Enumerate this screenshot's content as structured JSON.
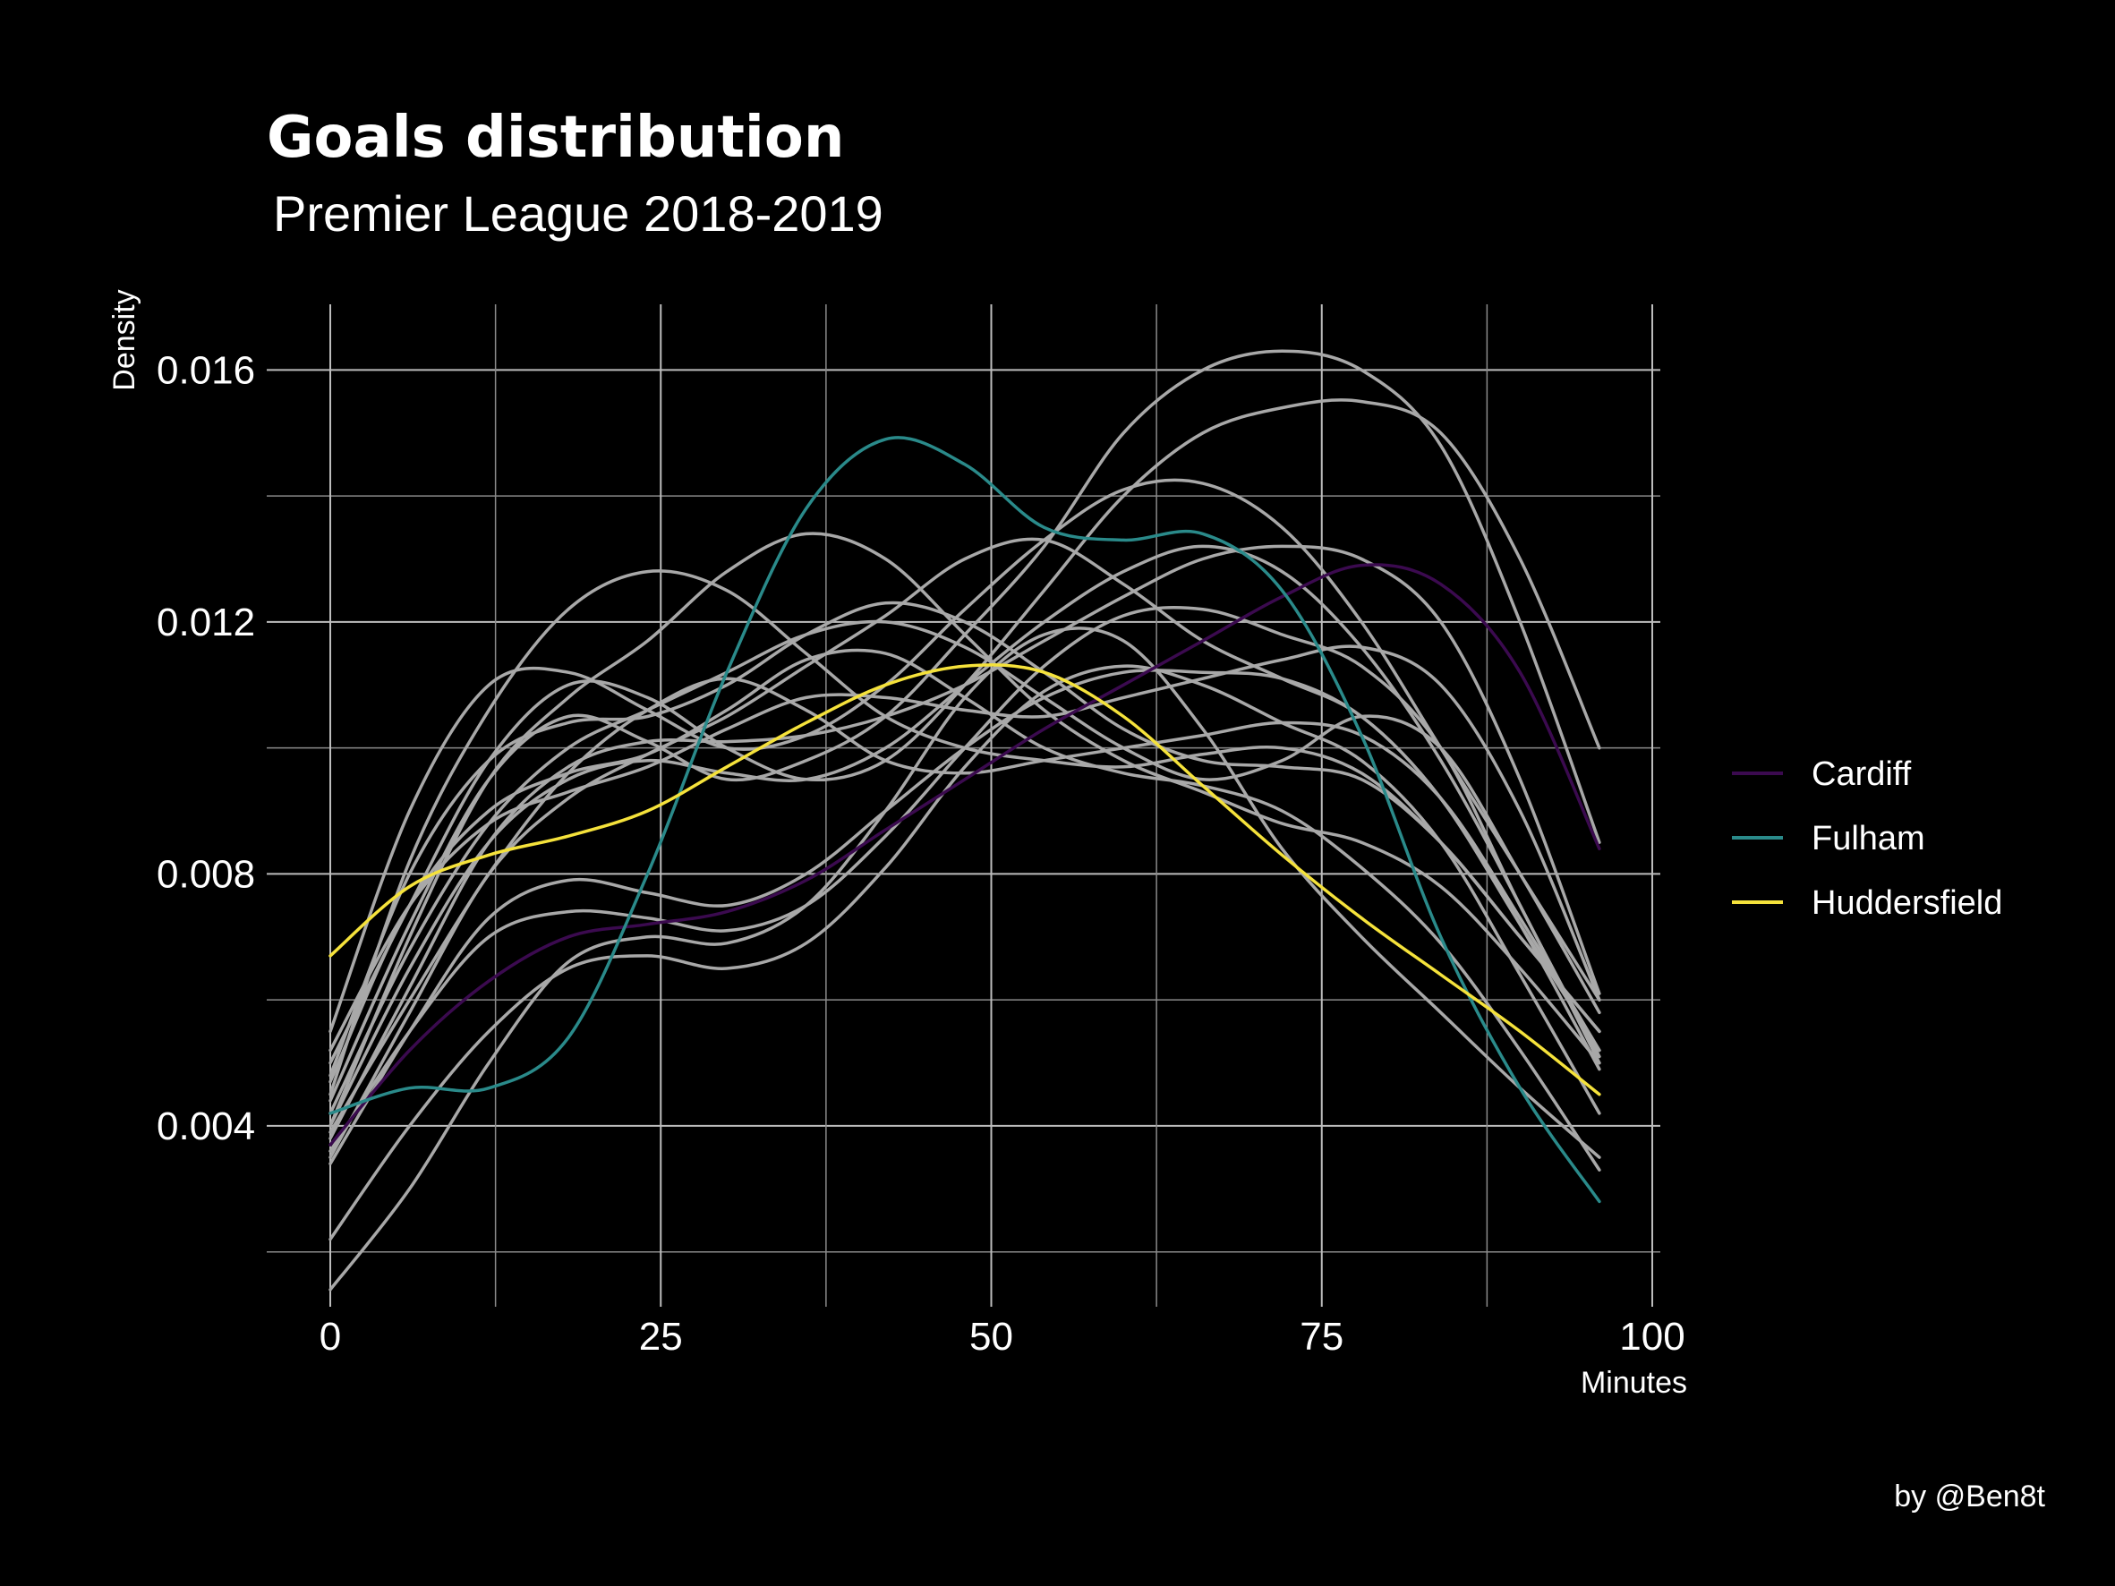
{
  "chart_data": {
    "type": "line",
    "title": "Goals distribution",
    "subtitle": "Premier League 2018-2019",
    "xlabel": "Minutes",
    "ylabel": "Density",
    "xlim": [
      0,
      100
    ],
    "ylim": [
      0.0012,
      0.017
    ],
    "x_ticks": [
      0,
      25,
      50,
      75,
      100
    ],
    "y_ticks": [
      0.004,
      0.008,
      0.012,
      0.016
    ],
    "x_tick_labels": [
      "0",
      "25",
      "50",
      "75",
      "100"
    ],
    "y_tick_labels": [
      "0.004",
      "0.008",
      "0.012",
      "0.016"
    ],
    "x_minor": [
      12.5,
      37.5,
      62.5,
      87.5
    ],
    "y_minor": [
      0.002,
      0.006,
      0.01,
      0.014
    ],
    "grid": true,
    "legend_position": "right",
    "caption": "by @Ben8t",
    "x": [
      0,
      6,
      12,
      18,
      24,
      30,
      36,
      42,
      48,
      54,
      60,
      66,
      72,
      78,
      84,
      90,
      96
    ],
    "series": [
      {
        "name": "Cardiff",
        "color": "#3b0a4f",
        "highlight": true,
        "values": [
          0.0037,
          0.0052,
          0.0063,
          0.007,
          0.0072,
          0.0074,
          0.0079,
          0.0087,
          0.0095,
          0.0103,
          0.011,
          0.0117,
          0.0124,
          0.0129,
          0.0126,
          0.0112,
          0.0084
        ]
      },
      {
        "name": "Fulham",
        "color": "#2a8a8a",
        "highlight": true,
        "values": [
          0.0042,
          0.0046,
          0.0046,
          0.0054,
          0.008,
          0.0112,
          0.0138,
          0.0149,
          0.0145,
          0.0135,
          0.0133,
          0.0134,
          0.0125,
          0.0102,
          0.007,
          0.0046,
          0.0028
        ]
      },
      {
        "name": "Huddersfield",
        "color": "#f5e23b",
        "highlight": true,
        "values": [
          0.0067,
          0.0078,
          0.0083,
          0.0086,
          0.009,
          0.0097,
          0.0104,
          0.011,
          0.0113,
          0.0112,
          0.0105,
          0.0094,
          0.0083,
          0.0073,
          0.0064,
          0.0055,
          0.0045
        ]
      },
      {
        "color": "#a8a8a8",
        "highlight": false,
        "values": [
          0.0044,
          0.0072,
          0.0095,
          0.0105,
          0.0101,
          0.0095,
          0.0098,
          0.0105,
          0.0118,
          0.0132,
          0.015,
          0.016,
          0.0163,
          0.016,
          0.0148,
          0.012,
          0.0085
        ]
      },
      {
        "color": "#a8a8a8",
        "highlight": false,
        "values": [
          0.005,
          0.0075,
          0.0098,
          0.011,
          0.0108,
          0.01,
          0.0095,
          0.0098,
          0.011,
          0.0125,
          0.014,
          0.015,
          0.0154,
          0.0155,
          0.015,
          0.013,
          0.01
        ]
      },
      {
        "color": "#a8a8a8",
        "highlight": false,
        "values": [
          0.0055,
          0.009,
          0.011,
          0.0112,
          0.0106,
          0.01,
          0.0102,
          0.011,
          0.0122,
          0.0133,
          0.0141,
          0.0142,
          0.0135,
          0.012,
          0.01,
          0.008,
          0.006
        ]
      },
      {
        "color": "#a8a8a8",
        "highlight": false,
        "values": [
          0.0045,
          0.0082,
          0.0106,
          0.0122,
          0.0128,
          0.0125,
          0.0115,
          0.0105,
          0.01,
          0.0098,
          0.0097,
          0.0099,
          0.01,
          0.0096,
          0.0085,
          0.007,
          0.0055
        ]
      },
      {
        "color": "#a8a8a8",
        "highlight": false,
        "values": [
          0.004,
          0.007,
          0.0095,
          0.0108,
          0.0117,
          0.0128,
          0.0134,
          0.013,
          0.0118,
          0.0106,
          0.0098,
          0.0093,
          0.0088,
          0.0085,
          0.0078,
          0.0065,
          0.005
        ]
      },
      {
        "color": "#a8a8a8",
        "highlight": false,
        "values": [
          0.0048,
          0.008,
          0.0098,
          0.0104,
          0.0105,
          0.011,
          0.0118,
          0.0123,
          0.012,
          0.0112,
          0.0103,
          0.0098,
          0.0097,
          0.0095,
          0.0085,
          0.007,
          0.0055
        ]
      },
      {
        "color": "#a8a8a8",
        "highlight": false,
        "values": [
          0.0042,
          0.0068,
          0.0088,
          0.01,
          0.0106,
          0.0112,
          0.0118,
          0.012,
          0.0116,
          0.0108,
          0.01,
          0.0095,
          0.0098,
          0.0105,
          0.01,
          0.008,
          0.0058
        ]
      },
      {
        "color": "#a8a8a8",
        "highlight": false,
        "values": [
          0.0035,
          0.0058,
          0.008,
          0.0092,
          0.0099,
          0.0105,
          0.0113,
          0.0121,
          0.013,
          0.0133,
          0.0126,
          0.0117,
          0.0111,
          0.0105,
          0.0092,
          0.0072,
          0.0052
        ]
      },
      {
        "color": "#a8a8a8",
        "highlight": false,
        "values": [
          0.0038,
          0.0062,
          0.0085,
          0.0097,
          0.0101,
          0.0101,
          0.0102,
          0.0105,
          0.011,
          0.0117,
          0.0124,
          0.013,
          0.0132,
          0.013,
          0.012,
          0.0095,
          0.0061
        ]
      },
      {
        "color": "#a8a8a8",
        "highlight": false,
        "values": [
          0.004,
          0.0065,
          0.0085,
          0.0095,
          0.0098,
          0.0096,
          0.0095,
          0.01,
          0.011,
          0.012,
          0.0128,
          0.0132,
          0.0128,
          0.0116,
          0.0098,
          0.0075,
          0.005
        ]
      },
      {
        "color": "#a8a8a8",
        "highlight": false,
        "values": [
          0.0052,
          0.0075,
          0.0088,
          0.0093,
          0.0097,
          0.0103,
          0.0108,
          0.0108,
          0.0106,
          0.0105,
          0.0108,
          0.0111,
          0.0114,
          0.0116,
          0.011,
          0.009,
          0.006
        ]
      },
      {
        "color": "#a8a8a8",
        "highlight": false,
        "values": [
          0.0034,
          0.0055,
          0.0073,
          0.0079,
          0.0077,
          0.0075,
          0.008,
          0.009,
          0.01,
          0.0108,
          0.0112,
          0.0112,
          0.0111,
          0.0105,
          0.0092,
          0.0072,
          0.0049
        ]
      },
      {
        "color": "#a8a8a8",
        "highlight": false,
        "values": [
          0.0036,
          0.0055,
          0.007,
          0.0074,
          0.0073,
          0.0071,
          0.0075,
          0.0086,
          0.01,
          0.0113,
          0.0121,
          0.0122,
          0.0118,
          0.0113,
          0.01,
          0.0075,
          0.0051
        ]
      },
      {
        "color": "#a8a8a8",
        "highlight": false,
        "values": [
          0.0039,
          0.006,
          0.008,
          0.0096,
          0.0106,
          0.0111,
          0.0106,
          0.0098,
          0.0096,
          0.0098,
          0.01,
          0.0102,
          0.0104,
          0.0102,
          0.0092,
          0.0073,
          0.0052
        ]
      },
      {
        "color": "#a8a8a8",
        "highlight": false,
        "values": [
          0.0022,
          0.004,
          0.0055,
          0.0065,
          0.0067,
          0.0065,
          0.0069,
          0.0081,
          0.0097,
          0.0109,
          0.0113,
          0.011,
          0.0104,
          0.0098,
          0.0085,
          0.0064,
          0.0042
        ]
      },
      {
        "color": "#a8a8a8",
        "highlight": false,
        "values": [
          0.0014,
          0.003,
          0.005,
          0.0066,
          0.007,
          0.0069,
          0.0075,
          0.009,
          0.0108,
          0.0118,
          0.0117,
          0.0103,
          0.0084,
          0.007,
          0.0058,
          0.0046,
          0.0035
        ]
      },
      {
        "color": "#a8a8a8",
        "highlight": false,
        "values": [
          0.0047,
          0.0075,
          0.009,
          0.0096,
          0.0099,
          0.0106,
          0.0114,
          0.0115,
          0.0108,
          0.01,
          0.0096,
          0.0094,
          0.009,
          0.0081,
          0.0069,
          0.0052,
          0.0033
        ]
      }
    ]
  }
}
